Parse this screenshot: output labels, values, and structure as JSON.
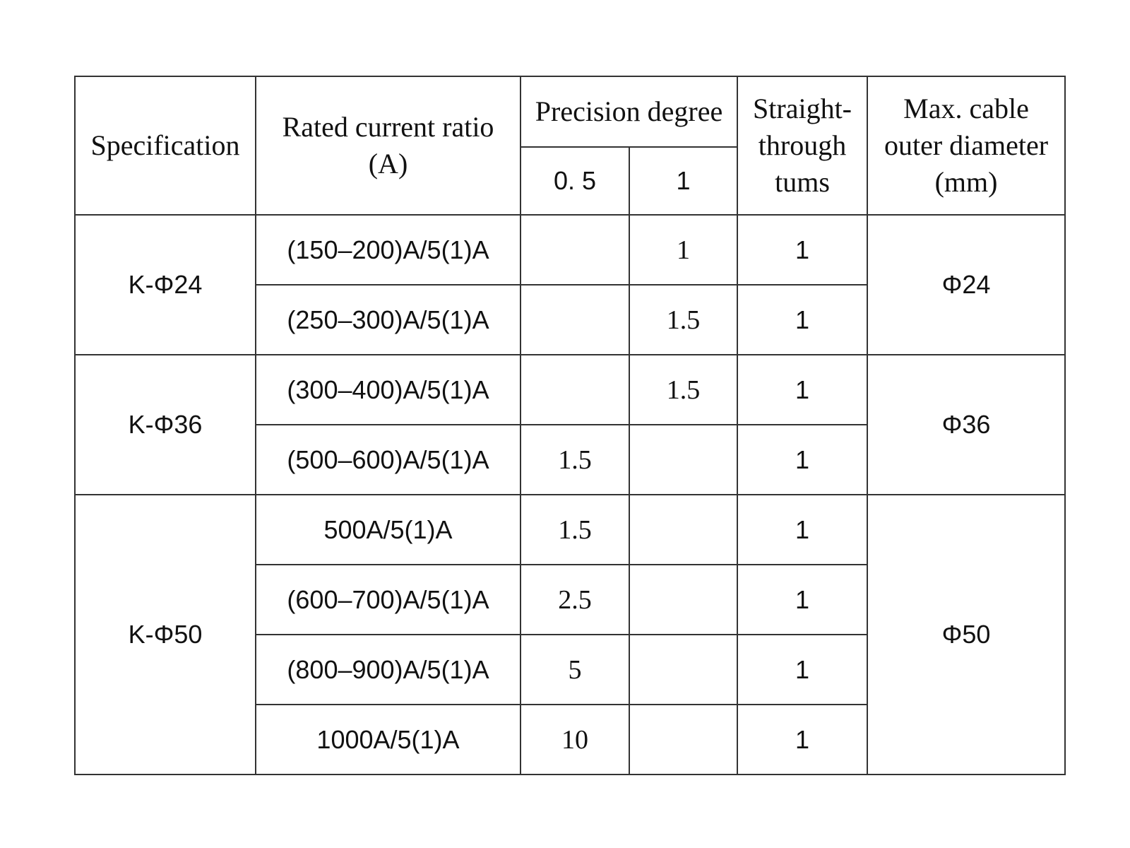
{
  "table": {
    "header": {
      "specification": "Specification",
      "ratio": "Rated current ratio (A)",
      "precision": "Precision degree",
      "precision_classes": [
        "0. 5",
        "1"
      ],
      "turns": "Straight-through tums",
      "diameter": "Max. cable outer diameter (mm)"
    },
    "groups": [
      {
        "specification": "K-Φ24",
        "diameter": "Φ24",
        "rows": [
          {
            "ratio": "(150–200)A/5(1)A",
            "precision": [
              null,
              1
            ],
            "turns": 1
          },
          {
            "ratio": "(250–300)A/5(1)A",
            "precision": [
              null,
              1.5
            ],
            "turns": 1
          }
        ]
      },
      {
        "specification": "K-Φ36",
        "diameter": "Φ36",
        "rows": [
          {
            "ratio": "(300–400)A/5(1)A",
            "precision": [
              null,
              1.5
            ],
            "turns": 1
          },
          {
            "ratio": "(500–600)A/5(1)A",
            "precision": [
              1.5,
              null
            ],
            "turns": 1
          }
        ]
      },
      {
        "specification": "K-Φ50",
        "diameter": "Φ50",
        "rows": [
          {
            "ratio": "500A/5(1)A",
            "precision": [
              1.5,
              null
            ],
            "turns": 1
          },
          {
            "ratio": "(600–700)A/5(1)A",
            "precision": [
              2.5,
              null
            ],
            "turns": 1
          },
          {
            "ratio": "(800–900)A/5(1)A",
            "precision": [
              5,
              null
            ],
            "turns": 1
          },
          {
            "ratio": "1000A/5(1)A",
            "precision": [
              10,
              null
            ],
            "turns": 1
          }
        ]
      }
    ]
  }
}
